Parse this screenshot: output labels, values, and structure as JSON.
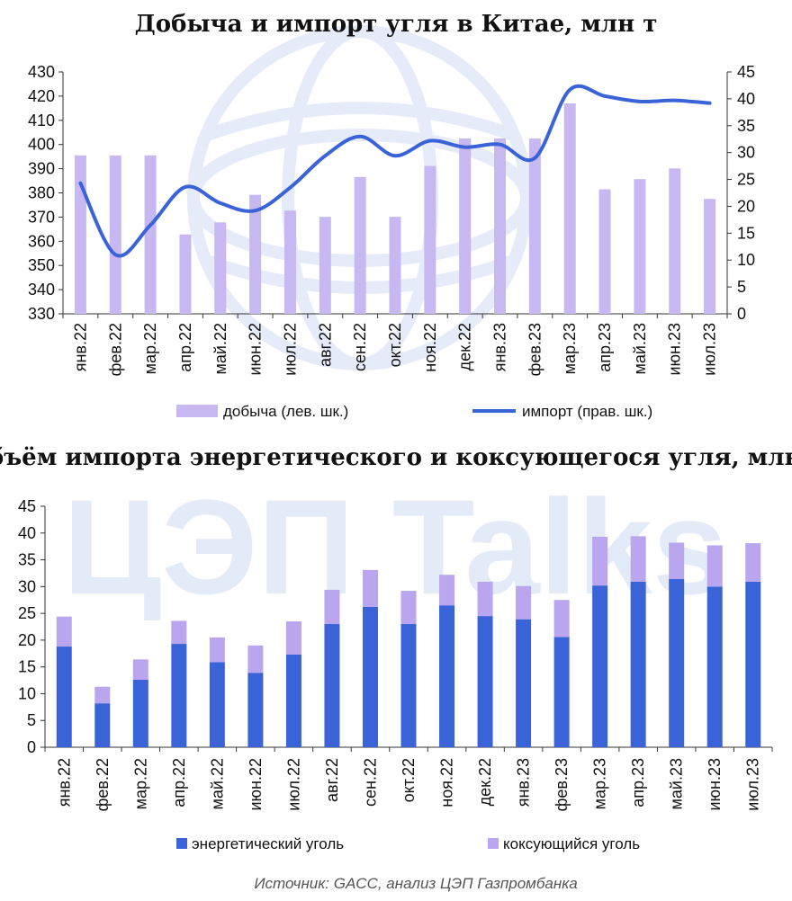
{
  "watermark_text": "ЦЭП Talks",
  "source": "Источник: GACC, анализ ЦЭП Газпромбанка",
  "chart_data": [
    {
      "type": "bar+line",
      "title": "Добыча и импорт угля в Китае, млн т",
      "categories": [
        "янв.22",
        "фев.22",
        "мар.22",
        "апр.22",
        "май.22",
        "июн.22",
        "июл.22",
        "авг.22",
        "сен.22",
        "окт.22",
        "ноя.22",
        "дек.22",
        "янв.23",
        "фев.23",
        "мар.23",
        "апр.23",
        "май.23",
        "июн.23",
        "июл.23"
      ],
      "series": [
        {
          "name": "добыча (лев. шк.)",
          "kind": "bar",
          "axis": "left",
          "color": "#c7b8f2",
          "values": [
            395.5,
            395.5,
            395.5,
            362.8,
            367.8,
            379.2,
            372.7,
            370.1,
            386.6,
            370.1,
            391.1,
            402.5,
            402.5,
            402.5,
            417.0,
            381.5,
            385.7,
            390.1,
            377.5
          ]
        },
        {
          "name": "импорт (прав. шк.)",
          "kind": "line",
          "axis": "right",
          "color": "#3a63d8",
          "values": [
            24.3,
            11.0,
            16.5,
            23.6,
            20.6,
            19.2,
            23.5,
            29.4,
            33.0,
            29.4,
            32.2,
            31.0,
            31.5,
            29.0,
            41.7,
            40.5,
            39.5,
            39.7,
            39.2
          ]
        }
      ],
      "ylim_left": [
        330,
        430
      ],
      "yticks_left": [
        "330",
        "340",
        "350",
        "360",
        "370",
        "380",
        "390",
        "400",
        "410",
        "420",
        "430"
      ],
      "ylim_right": [
        0,
        45
      ],
      "yticks_right": [
        "0",
        "5",
        "10",
        "15",
        "20",
        "25",
        "30",
        "35",
        "40",
        "45"
      ],
      "legend_position": "bottom"
    },
    {
      "type": "stacked_bar",
      "title": "Объём импорта энергетического и коксующегося угля, млн т",
      "categories": [
        "янв.22",
        "фев.22",
        "мар.22",
        "апр.22",
        "май.22",
        "июн.22",
        "июл.22",
        "авг.22",
        "сен.22",
        "окт.22",
        "ноя.22",
        "дек.22",
        "янв.23",
        "фев.23",
        "мар.23",
        "апр.23",
        "май.23",
        "июн.23",
        "июл.23"
      ],
      "series": [
        {
          "name": "энергетический уголь",
          "color": "#3a63d8",
          "values": [
            18.8,
            8.2,
            12.6,
            19.3,
            15.9,
            13.9,
            17.3,
            23.0,
            26.2,
            23.0,
            26.5,
            24.5,
            23.9,
            20.6,
            30.2,
            30.9,
            31.4,
            30.0,
            30.9
          ]
        },
        {
          "name": "коксующийся уголь",
          "color": "#b9a6ee",
          "values": [
            5.6,
            3.1,
            3.8,
            4.3,
            4.6,
            5.1,
            6.2,
            6.4,
            6.9,
            6.2,
            5.7,
            6.4,
            6.2,
            6.9,
            9.1,
            8.5,
            6.8,
            7.7,
            7.2
          ]
        }
      ],
      "ylim": [
        0,
        45
      ],
      "yticks": [
        "0",
        "5",
        "10",
        "15",
        "20",
        "25",
        "30",
        "35",
        "40",
        "45"
      ],
      "legend_position": "bottom"
    }
  ]
}
